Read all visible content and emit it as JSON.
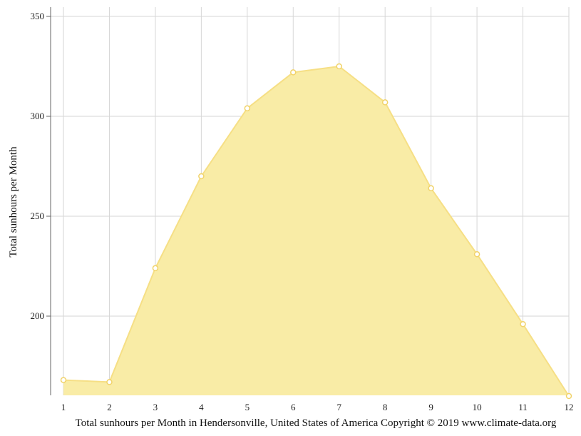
{
  "chart_data": {
    "type": "area",
    "title": "",
    "caption": "Total sunhours per Month in Hendersonville, United States of America Copyright © 2019 www.climate-data.org",
    "xlabel": "",
    "ylabel": "Total sunhours per Month",
    "x": [
      1,
      2,
      3,
      4,
      5,
      6,
      7,
      8,
      9,
      10,
      11,
      12
    ],
    "values": [
      168,
      167,
      224,
      270,
      304,
      322,
      325,
      307,
      264,
      231,
      196,
      160
    ],
    "ylim": [
      160,
      354
    ],
    "yticks": [
      200,
      250,
      300,
      350
    ],
    "grid": true,
    "legend": "none",
    "colors": {
      "fill": "#f9eca6",
      "line": "#f6df85",
      "marker_fill": "#ffffff",
      "marker_stroke": "#f1d36a",
      "grid": "#d6d6d6",
      "axis": "#666666"
    }
  }
}
